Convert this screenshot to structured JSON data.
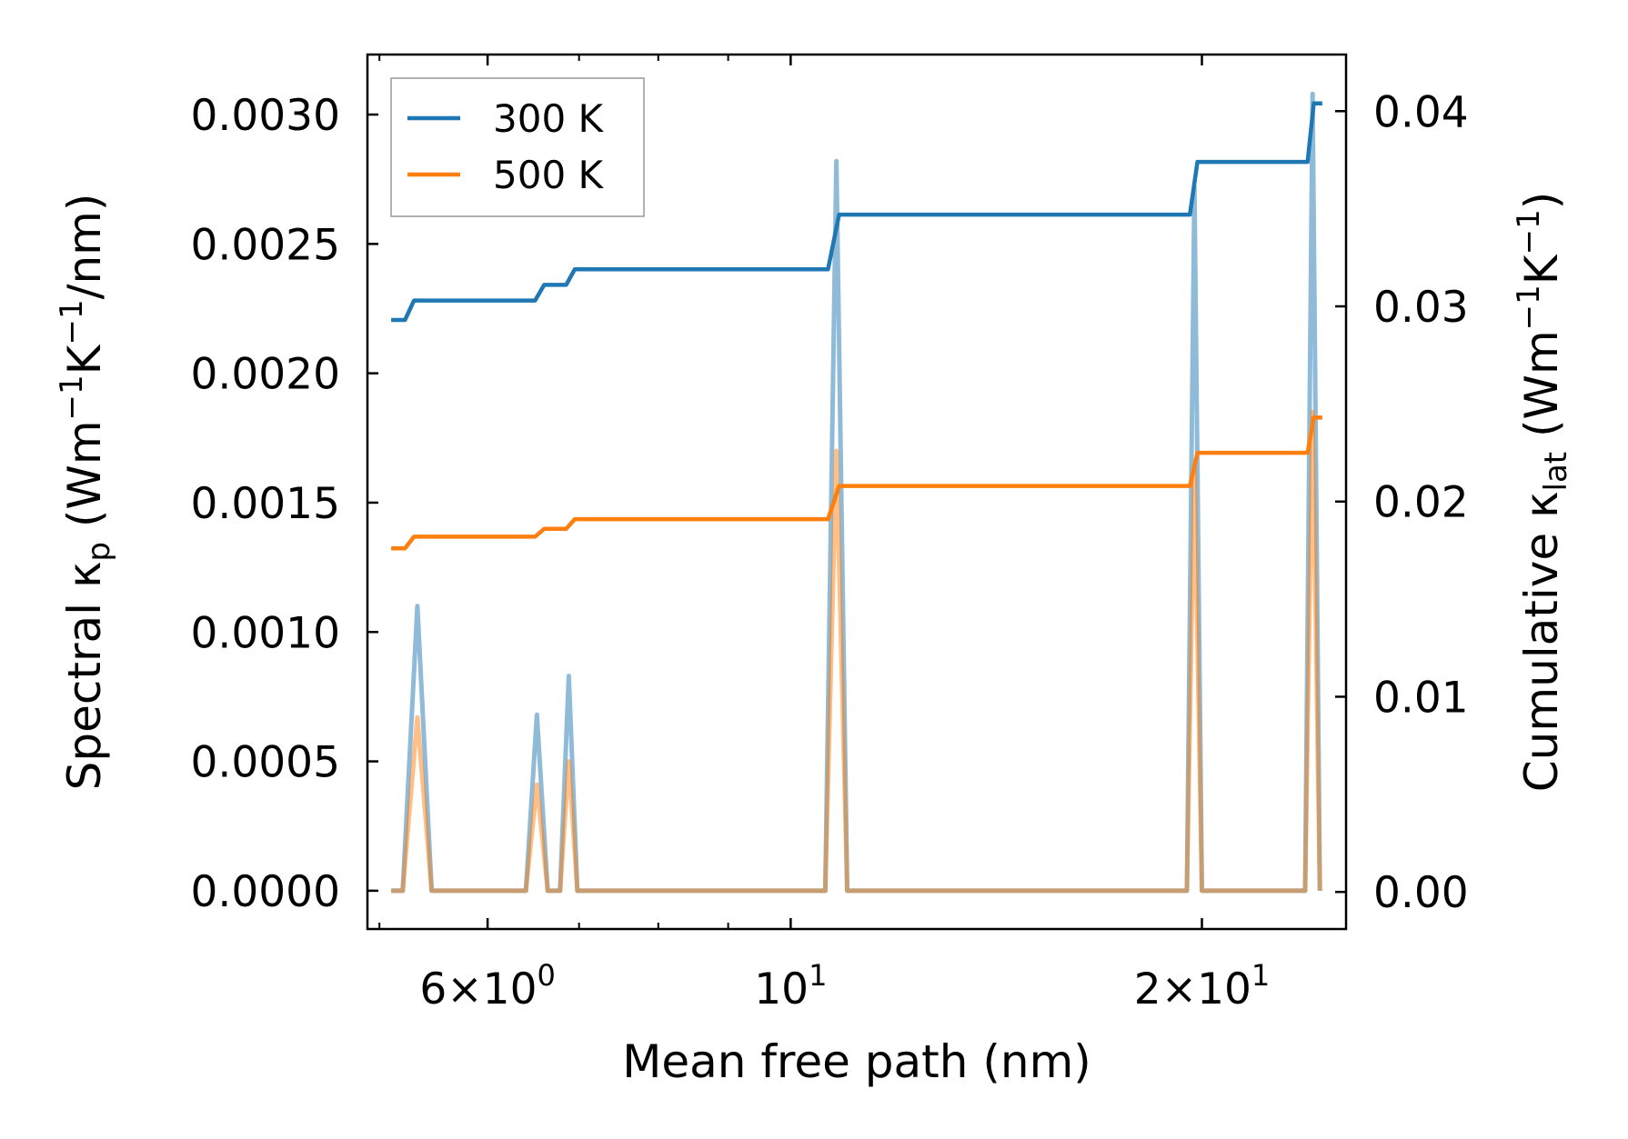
{
  "chart_data": {
    "type": "line",
    "xlabel": "Mean free path (nm)",
    "ylabel_left": {
      "pre": "Spectral κ",
      "sub": "p",
      "unit": " (Wm",
      "s1": "−1",
      "k": "K",
      "s2": "−1",
      "tail": "/nm)"
    },
    "ylabel_right": {
      "pre": "Cumulative κ",
      "sub": "lat",
      "unit": " (Wm",
      "s1": "−1",
      "k": "K",
      "s2": "−1",
      "tail": ")"
    },
    "xscale": "log",
    "xlim": [
      4.9,
      25.5
    ],
    "ylim_left": [
      -0.000148,
      0.003232
    ],
    "ylim_right": [
      -0.0019,
      0.0429
    ],
    "x_major_ticks": [
      {
        "value": 6,
        "base": "6",
        "exp": "0",
        "mult": true
      },
      {
        "value": 10,
        "base": "10",
        "exp": "1",
        "mult": false
      },
      {
        "value": 20,
        "base": "2",
        "exp": "1",
        "mult": true
      }
    ],
    "x_minor_ticks": [
      5,
      7,
      8,
      9,
      30
    ],
    "y_left_ticks": [
      {
        "value": 0.0,
        "label": "0.0000"
      },
      {
        "value": 0.0005,
        "label": "0.0005"
      },
      {
        "value": 0.001,
        "label": "0.0010"
      },
      {
        "value": 0.0015,
        "label": "0.0015"
      },
      {
        "value": 0.002,
        "label": "0.0020"
      },
      {
        "value": 0.0025,
        "label": "0.0025"
      },
      {
        "value": 0.003,
        "label": "0.0030"
      }
    ],
    "y_right_ticks": [
      {
        "value": 0.0,
        "label": "0.00"
      },
      {
        "value": 0.01,
        "label": "0.01"
      },
      {
        "value": 0.02,
        "label": "0.02"
      },
      {
        "value": 0.03,
        "label": "0.03"
      },
      {
        "value": 0.04,
        "label": "0.04"
      }
    ],
    "legend_position": "upper-left",
    "series": [
      {
        "name": "300 K",
        "color": "#1f77b4",
        "cumulative": [
          [
            5.1,
            0.0293
          ],
          [
            5.22,
            0.0293
          ],
          [
            5.3,
            0.0303
          ],
          [
            6.5,
            0.0303
          ],
          [
            6.6,
            0.0311
          ],
          [
            6.85,
            0.0311
          ],
          [
            6.95,
            0.0319
          ],
          [
            10.65,
            0.0319
          ],
          [
            10.85,
            0.0347
          ],
          [
            19.6,
            0.0347
          ],
          [
            19.85,
            0.0374
          ],
          [
            23.9,
            0.0374
          ],
          [
            24.15,
            0.0404
          ],
          [
            24.5,
            0.0404
          ]
        ],
        "spectral": [
          [
            5.1,
            0
          ],
          [
            5.2,
            0
          ],
          [
            5.33,
            0.0011
          ],
          [
            5.46,
            0
          ],
          [
            6.4,
            0
          ],
          [
            6.52,
            0.00068
          ],
          [
            6.64,
            0
          ],
          [
            6.78,
            0
          ],
          [
            6.88,
            0.00083
          ],
          [
            6.98,
            0
          ],
          [
            10.6,
            0
          ],
          [
            10.8,
            0.00282
          ],
          [
            11.0,
            0
          ],
          [
            19.5,
            0
          ],
          [
            19.75,
            0.00272
          ],
          [
            20.0,
            0
          ],
          [
            23.8,
            0
          ],
          [
            24.1,
            0.00308
          ],
          [
            24.4,
            0
          ]
        ]
      },
      {
        "name": "500 K",
        "color": "#ff7f0e",
        "cumulative": [
          [
            5.1,
            0.0176
          ],
          [
            5.22,
            0.0176
          ],
          [
            5.3,
            0.0182
          ],
          [
            6.5,
            0.0182
          ],
          [
            6.6,
            0.0186
          ],
          [
            6.85,
            0.0186
          ],
          [
            6.95,
            0.0191
          ],
          [
            10.65,
            0.0191
          ],
          [
            10.85,
            0.0208
          ],
          [
            19.6,
            0.0208
          ],
          [
            19.85,
            0.0225
          ],
          [
            23.9,
            0.0225
          ],
          [
            24.15,
            0.0243
          ],
          [
            24.5,
            0.0243
          ]
        ],
        "spectral": [
          [
            5.1,
            0
          ],
          [
            5.2,
            0
          ],
          [
            5.33,
            0.00067
          ],
          [
            5.46,
            0
          ],
          [
            6.4,
            0
          ],
          [
            6.52,
            0.00041
          ],
          [
            6.64,
            0
          ],
          [
            6.78,
            0
          ],
          [
            6.88,
            0.0005
          ],
          [
            6.98,
            0
          ],
          [
            10.6,
            0
          ],
          [
            10.8,
            0.0017
          ],
          [
            11.0,
            0
          ],
          [
            19.5,
            0
          ],
          [
            19.75,
            0.00164
          ],
          [
            20.0,
            0
          ],
          [
            23.8,
            0
          ],
          [
            24.1,
            0.00185
          ],
          [
            24.4,
            0
          ]
        ]
      }
    ]
  }
}
